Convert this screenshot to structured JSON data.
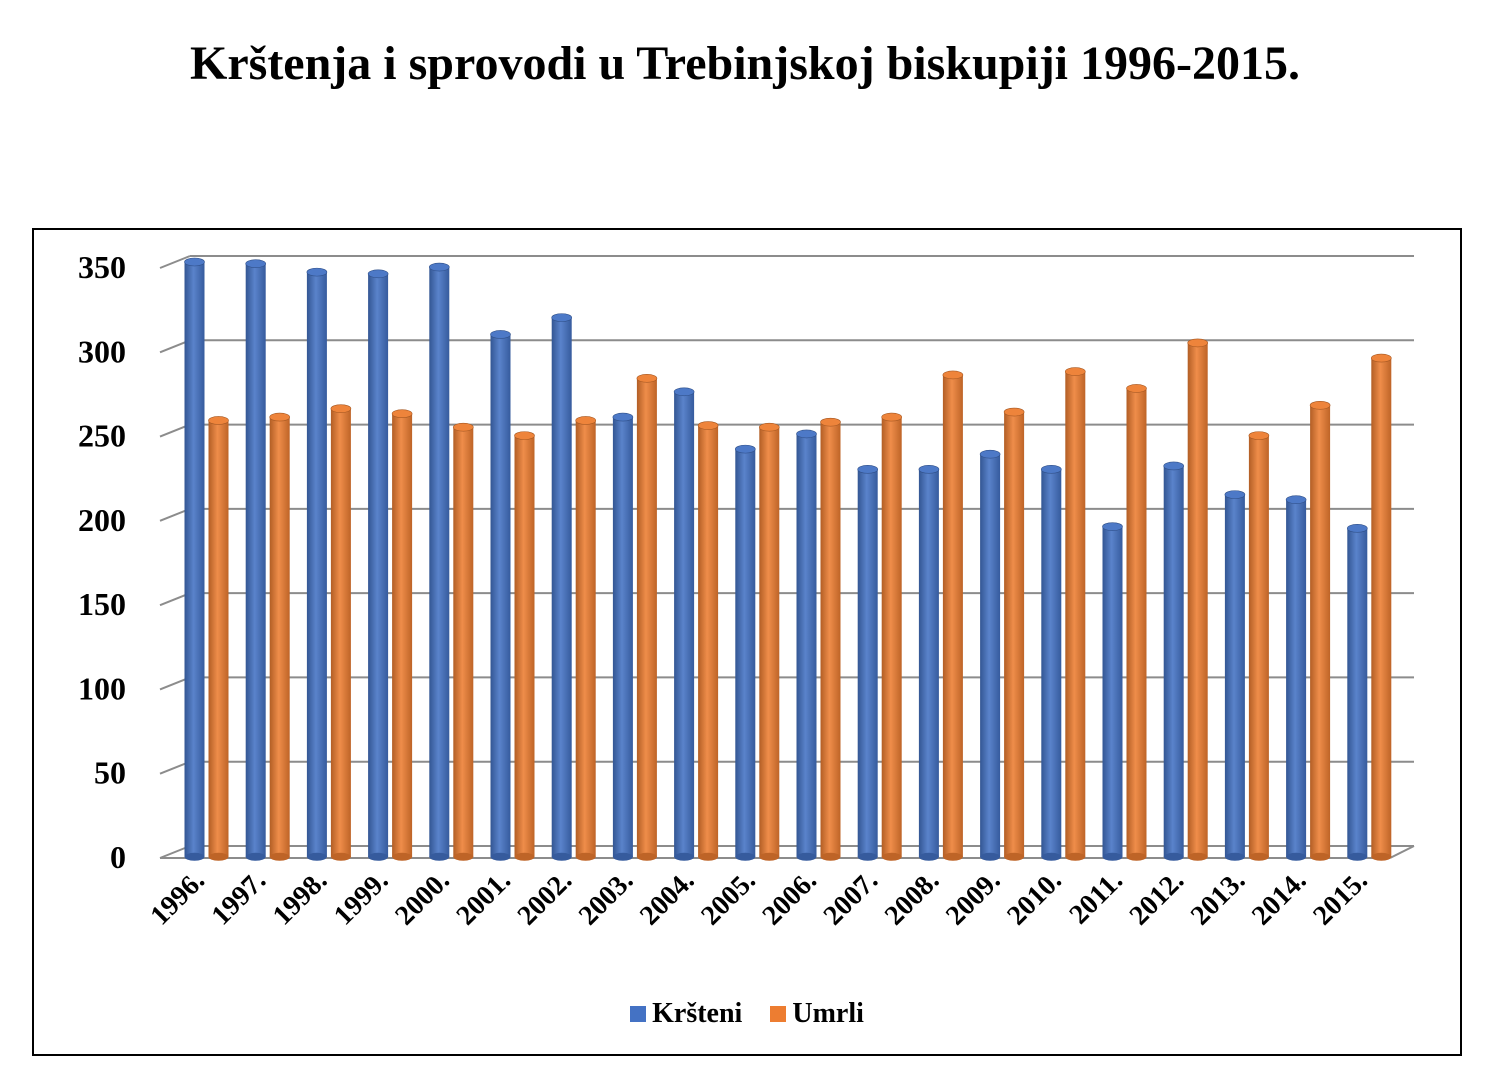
{
  "title": "Krštenja i sprovodi u Trebinjskoj biskupiji 1996-2015.",
  "chart_data": {
    "type": "bar",
    "title": "Krštenja i sprovodi u Trebinjskoj biskupiji 1996-2015.",
    "categories": [
      "1996.",
      "1997.",
      "1998.",
      "1999.",
      "2000.",
      "2001.",
      "2002.",
      "2003.",
      "2004.",
      "2005.",
      "2006.",
      "2007.",
      "2008.",
      "2009.",
      "2010.",
      "2011.",
      "2012.",
      "2013.",
      "2014.",
      "2015."
    ],
    "series": [
      {
        "name": "Kršteni",
        "color": "#4472C4",
        "values": [
          350,
          349,
          344,
          343,
          347,
          307,
          317,
          258,
          273,
          239,
          248,
          227,
          227,
          236,
          227,
          193,
          229,
          212,
          209,
          192
        ]
      },
      {
        "name": "Umrli",
        "color": "#ED7D31",
        "values": [
          256,
          258,
          263,
          260,
          252,
          247,
          256,
          281,
          253,
          252,
          255,
          258,
          283,
          261,
          285,
          275,
          302,
          247,
          265,
          293
        ]
      }
    ],
    "ylim": [
      0,
      350
    ],
    "yticks": [
      0,
      50,
      100,
      150,
      200,
      250,
      300,
      350
    ],
    "grid": true,
    "legend_position": "bottom"
  }
}
